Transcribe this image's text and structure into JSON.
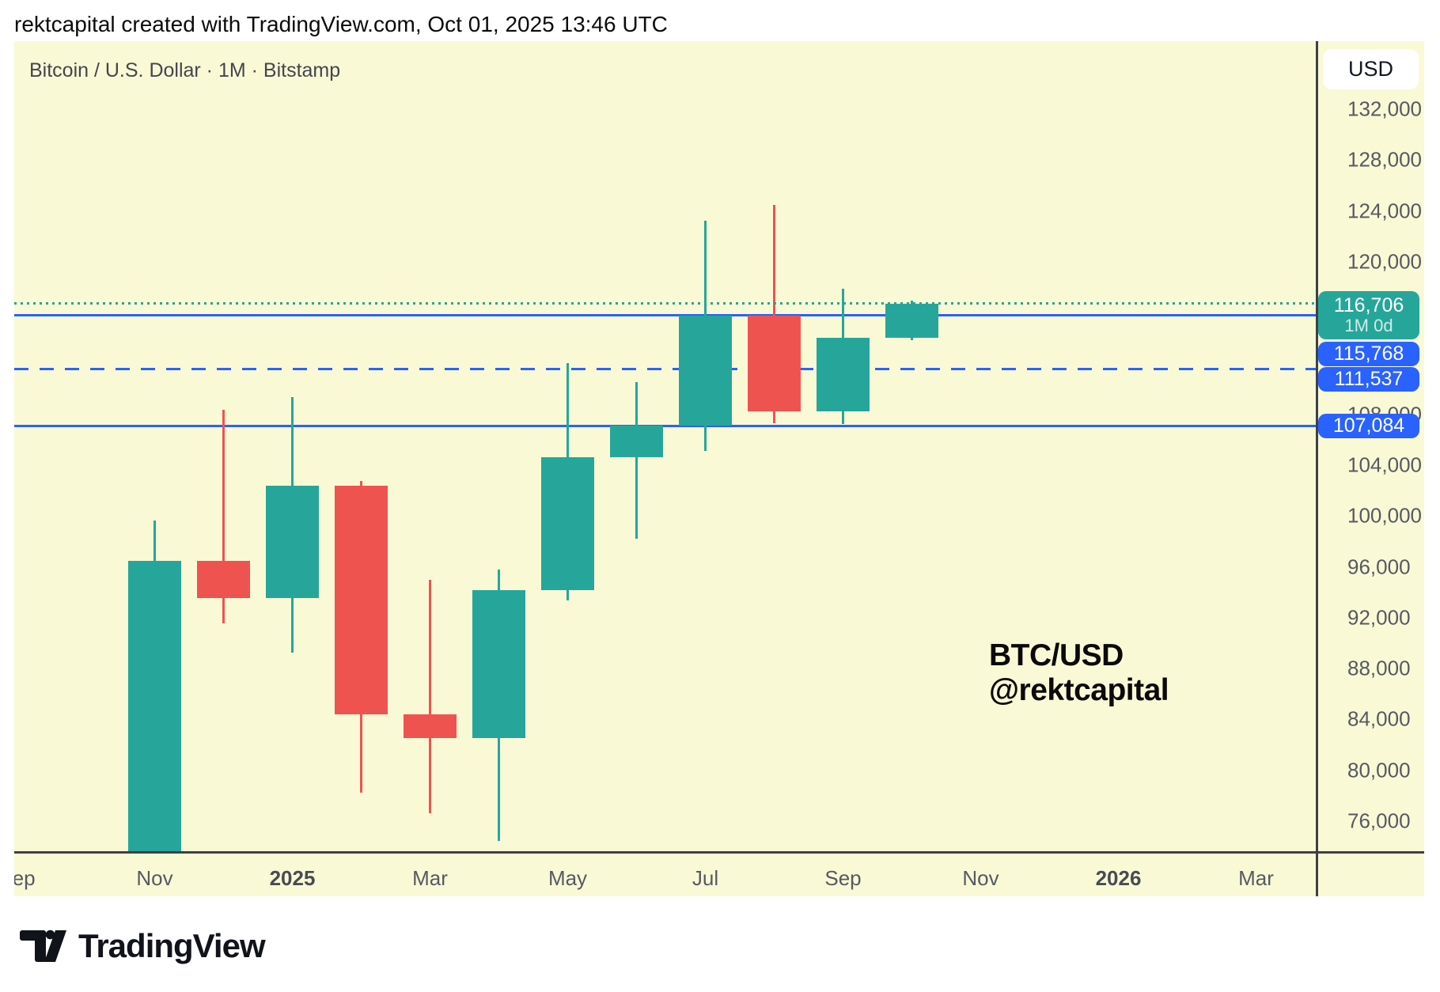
{
  "header": {
    "attribution": "rektcapital created with TradingView.com, Oct 01, 2025 13:46 UTC"
  },
  "chart": {
    "legend": "Bitcoin / U.S. Dollar · 1M · Bitstamp",
    "watermark_line1": "BTC/USD",
    "watermark_line2": "@rektcapital",
    "currency_button": "USD",
    "colors": {
      "background": "#FAF9D6",
      "up": "#26A69A",
      "down": "#EF5350",
      "drawn_line_blue": "#2962FF",
      "current_price_teal": "#26A69A",
      "axis_text": "#555a62",
      "axis_line": "#3d4046"
    }
  },
  "chart_data": {
    "type": "candlestick",
    "title": "Bitcoin / U.S. Dollar",
    "symbol": "BTC/USD",
    "timeframe": "1M",
    "exchange": "Bitstamp",
    "ylim": [
      73500,
      137400
    ],
    "grid": false,
    "categories": [
      "Nov 2024",
      "Dec 2024",
      "Jan 2025",
      "Feb 2025",
      "Mar 2025",
      "Apr 2025",
      "May 2025",
      "Jun 2025",
      "Jul 2025",
      "Aug 2025",
      "Sep 2025",
      "Oct 2025"
    ],
    "candles": [
      {
        "month": "Nov 2024",
        "open": 70215,
        "high": 99655,
        "low": 66835,
        "close": 96449
      },
      {
        "month": "Dec 2024",
        "open": 96449,
        "high": 108364,
        "low": 91530,
        "close": 93557
      },
      {
        "month": "Jan 2025",
        "open": 93557,
        "high": 109358,
        "low": 89256,
        "close": 102405
      },
      {
        "month": "Feb 2025",
        "open": 102405,
        "high": 102781,
        "low": 78258,
        "close": 84373
      },
      {
        "month": "Mar 2025",
        "open": 84373,
        "high": 95000,
        "low": 76606,
        "close": 82550
      },
      {
        "month": "Apr 2025",
        "open": 82550,
        "high": 95768,
        "low": 74420,
        "close": 94184
      },
      {
        "month": "May 2025",
        "open": 94184,
        "high": 112000,
        "low": 93366,
        "close": 104598
      },
      {
        "month": "Jun 2025",
        "open": 104598,
        "high": 110530,
        "low": 98240,
        "close": 107135
      },
      {
        "month": "Jul 2025",
        "open": 107135,
        "high": 123256,
        "low": 105111,
        "close": 115765
      },
      {
        "month": "Aug 2025",
        "open": 115765,
        "high": 124500,
        "low": 107270,
        "close": 108236
      },
      {
        "month": "Sep 2025",
        "open": 108236,
        "high": 117900,
        "low": 107255,
        "close": 114045
      },
      {
        "month": "Oct 2025",
        "open": 114045,
        "high": 116950,
        "low": 113860,
        "close": 116706
      }
    ],
    "y_ticks": [
      {
        "label": "132,000",
        "value": 132000
      },
      {
        "label": "128,000",
        "value": 128000
      },
      {
        "label": "124,000",
        "value": 124000
      },
      {
        "label": "120,000",
        "value": 120000
      },
      {
        "label": "108,000",
        "value": 108000
      },
      {
        "label": "104,000",
        "value": 104000
      },
      {
        "label": "100,000",
        "value": 100000
      },
      {
        "label": "96,000",
        "value": 96000
      },
      {
        "label": "92,000",
        "value": 92000
      },
      {
        "label": "88,000",
        "value": 88000
      },
      {
        "label": "84,000",
        "value": 84000
      },
      {
        "label": "80,000",
        "value": 80000
      },
      {
        "label": "76,000",
        "value": 76000
      }
    ],
    "x_ticks": [
      {
        "label": "Sep",
        "month_index": -2,
        "bold": false
      },
      {
        "label": "Nov",
        "month_index": 0,
        "bold": false
      },
      {
        "label": "2025",
        "month_index": 2,
        "bold": true
      },
      {
        "label": "Mar",
        "month_index": 4,
        "bold": false
      },
      {
        "label": "May",
        "month_index": 6,
        "bold": false
      },
      {
        "label": "Jul",
        "month_index": 8,
        "bold": false
      },
      {
        "label": "Sep",
        "month_index": 10,
        "bold": false
      },
      {
        "label": "Nov",
        "month_index": 12,
        "bold": false
      },
      {
        "label": "2026",
        "month_index": 14,
        "bold": true
      },
      {
        "label": "Mar",
        "month_index": 16,
        "bold": false
      }
    ],
    "price_lines": [
      {
        "price": 116706,
        "style": "dotted",
        "color": "#26A69A",
        "role": "current-price"
      },
      {
        "price": 115768,
        "style": "solid",
        "color": "#2962FF",
        "role": "horizontal-line"
      },
      {
        "price": 111537,
        "style": "dashed",
        "color": "#2962FF",
        "role": "horizontal-line"
      },
      {
        "price": 107084,
        "style": "solid",
        "color": "#2962FF",
        "role": "horizontal-line"
      }
    ],
    "current_price_label": {
      "value": "116,706",
      "countdown": "1M 0d",
      "bg": "#26A69A"
    },
    "price_labels": [
      {
        "value": "115,768",
        "bg": "#2962FF",
        "price": 115768
      },
      {
        "value": "111,537",
        "bg": "#2962FF",
        "price": 111537
      },
      {
        "value": "107,084",
        "bg": "#2962FF",
        "price": 107084
      }
    ]
  },
  "footer": {
    "brand": "TradingView"
  }
}
